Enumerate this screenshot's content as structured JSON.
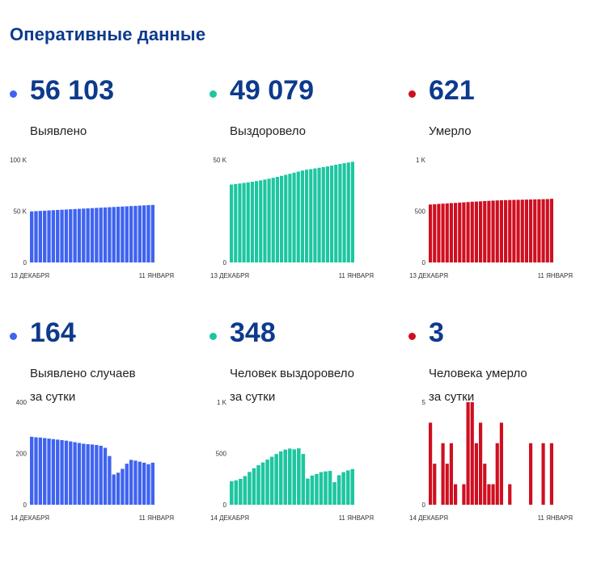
{
  "page": {
    "title": "Оперативные данные"
  },
  "colors": {
    "blue": "#3f63f0",
    "green": "#1dc6a0",
    "red": "#cf0f20",
    "title": "#0d3a8c"
  },
  "panels": [
    {
      "value": "56 103",
      "caption_line1": "Выявлено",
      "caption_line2": "",
      "color": "blue"
    },
    {
      "value": "49 079",
      "caption_line1": "Выздоровело",
      "caption_line2": "",
      "color": "green"
    },
    {
      "value": "621",
      "caption_line1": "Умерло",
      "caption_line2": "",
      "color": "red"
    },
    {
      "value": "164",
      "caption_line1": "Выявлено случаев",
      "caption_line2": "за сутки",
      "color": "blue"
    },
    {
      "value": "348",
      "caption_line1": "Человек выздоровело",
      "caption_line2": "за сутки",
      "color": "green"
    },
    {
      "value": "3",
      "caption_line1": "Человека умерло",
      "caption_line2": "за сутки",
      "color": "red"
    }
  ],
  "chart_data": [
    {
      "type": "bar",
      "color": "blue",
      "ylim": [
        0,
        100000
      ],
      "yticks": [
        {
          "value": 0,
          "label": "0"
        },
        {
          "value": 50000,
          "label": "50 K"
        },
        {
          "value": 100000,
          "label": "100 K"
        }
      ],
      "x_start_label": "13 ДЕКАБРЯ",
      "x_end_label": "11 ЯНВАРЯ",
      "values": [
        49800,
        50040,
        50270,
        50500,
        50740,
        50970,
        51200,
        51430,
        51650,
        51880,
        52100,
        52320,
        52540,
        52760,
        52980,
        53200,
        53420,
        53640,
        53860,
        54080,
        54300,
        54520,
        54740,
        54970,
        55200,
        55430,
        55660,
        55880,
        56103
      ]
    },
    {
      "type": "bar",
      "color": "green",
      "ylim": [
        0,
        50000
      ],
      "yticks": [
        {
          "value": 0,
          "label": "0"
        },
        {
          "value": 50000,
          "label": "50 K"
        }
      ],
      "x_start_label": "13 ДЕКАБРЯ",
      "x_end_label": "11 ЯНВАРЯ",
      "values": [
        38000,
        38250,
        38500,
        38780,
        39060,
        39360,
        39690,
        40030,
        40420,
        40830,
        41270,
        41740,
        42220,
        42720,
        43230,
        43760,
        44300,
        44820,
        45220,
        45490,
        45830,
        46170,
        46490,
        46820,
        47220,
        47640,
        48040,
        48380,
        48720,
        49079
      ]
    },
    {
      "type": "bar",
      "color": "red",
      "ylim": [
        0,
        1000
      ],
      "yticks": [
        {
          "value": 0,
          "label": "0"
        },
        {
          "value": 500,
          "label": "500"
        },
        {
          "value": 1000,
          "label": "1 K"
        }
      ],
      "x_start_label": "13 ДЕКАБРЯ",
      "x_end_label": "11 ЯНВАРЯ",
      "values": [
        565,
        568,
        571,
        573,
        576,
        579,
        581,
        584,
        586,
        589,
        592,
        594,
        596,
        599,
        601,
        603,
        605,
        607,
        608,
        609,
        610,
        611,
        612,
        613,
        614,
        615,
        616,
        617,
        618,
        621
      ]
    },
    {
      "type": "bar",
      "color": "blue",
      "ylim": [
        0,
        400
      ],
      "yticks": [
        {
          "value": 0,
          "label": "0"
        },
        {
          "value": 200,
          "label": "200"
        },
        {
          "value": 400,
          "label": "400"
        }
      ],
      "x_start_label": "14 ДЕКАБРЯ",
      "x_end_label": "11 ЯНВАРЯ",
      "values": [
        265,
        263,
        262,
        260,
        258,
        256,
        254,
        252,
        250,
        247,
        244,
        241,
        238,
        236,
        235,
        233,
        230,
        222,
        190,
        118,
        125,
        140,
        160,
        175,
        172,
        168,
        164,
        158,
        164
      ]
    },
    {
      "type": "bar",
      "color": "green",
      "ylim": [
        0,
        1000
      ],
      "yticks": [
        {
          "value": 0,
          "label": "0"
        },
        {
          "value": 500,
          "label": "500"
        },
        {
          "value": 1000,
          "label": "1 K"
        }
      ],
      "x_start_label": "14 ДЕКАБРЯ",
      "x_end_label": "11 ЯНВАРЯ",
      "values": [
        228,
        238,
        252,
        280,
        320,
        356,
        385,
        412,
        440,
        468,
        495,
        520,
        538,
        548,
        540,
        550,
        495,
        255,
        285,
        300,
        318,
        325,
        330,
        220,
        288,
        318,
        335,
        348
      ]
    },
    {
      "type": "bar",
      "color": "red",
      "ylim": [
        0,
        5
      ],
      "yticks": [
        {
          "value": 0,
          "label": "0"
        },
        {
          "value": 5,
          "label": "5"
        }
      ],
      "x_start_label": "14 ДЕКАБРЯ",
      "x_end_label": "11 ЯНВАРЯ",
      "values": [
        4,
        2,
        0,
        3,
        2,
        3,
        1,
        0,
        1,
        5,
        5,
        3,
        4,
        2,
        1,
        1,
        3,
        4,
        0,
        1,
        0,
        0,
        0,
        0,
        3,
        0,
        0,
        3,
        0,
        3
      ]
    }
  ]
}
